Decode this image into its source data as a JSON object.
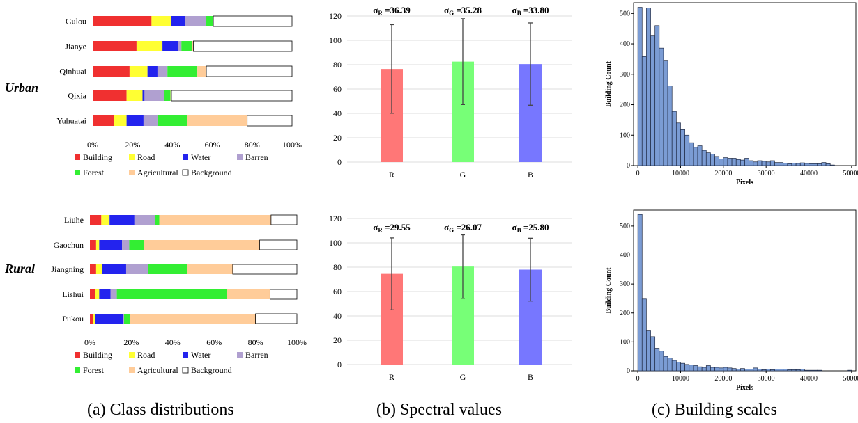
{
  "captions": {
    "a": "(a) Class distributions",
    "b": "(b) Spectral values",
    "c": "(c) Building scales"
  },
  "chart_data": [
    {
      "id": "urban-class-distribution",
      "type": "bar",
      "orientation": "horizontal",
      "stacked": true,
      "group_label": "Urban",
      "categories": [
        "Gulou",
        "Jianye",
        "Qinhuai",
        "Qixia",
        "Yuhuatai"
      ],
      "xlim": [
        0,
        100
      ],
      "x_ticks": [
        "0%",
        "20%",
        "40%",
        "60%",
        "80%",
        "100%"
      ],
      "series": [
        {
          "name": "Building",
          "color": "#f03030",
          "values": [
            29.5,
            22,
            18.5,
            17,
            10.5
          ]
        },
        {
          "name": "Road",
          "color": "#ffff33",
          "values": [
            10,
            13,
            9,
            8,
            6.5
          ]
        },
        {
          "name": "Water",
          "color": "#2323ee",
          "values": [
            7,
            8,
            5,
            1,
            8.5
          ]
        },
        {
          "name": "Barren",
          "color": "#b0a0d0",
          "values": [
            10.5,
            1.5,
            5,
            10,
            7
          ]
        },
        {
          "name": "Forest",
          "color": "#33ee33",
          "values": [
            3.5,
            5.5,
            15,
            3,
            15
          ]
        },
        {
          "name": "Agricultural",
          "color": "#ffcc99",
          "values": [
            0,
            0.5,
            4.5,
            0.5,
            30
          ]
        },
        {
          "name": "Background",
          "color": "#ffffff",
          "values": [
            39.5,
            49.5,
            43,
            60.5,
            22.5
          ]
        }
      ],
      "legend": "bottom"
    },
    {
      "id": "rural-class-distribution",
      "type": "bar",
      "orientation": "horizontal",
      "stacked": true,
      "group_label": "Rural",
      "categories": [
        "Liuhe",
        "Gaochun",
        "Jiangning",
        "Lishui",
        "Pukou"
      ],
      "xlim": [
        0,
        100
      ],
      "x_ticks": [
        "0%",
        "20%",
        "40%",
        "60%",
        "80%",
        "100%"
      ],
      "series": [
        {
          "name": "Building",
          "color": "#f03030",
          "values": [
            5.5,
            3,
            3,
            2.5,
            1.5
          ]
        },
        {
          "name": "Road",
          "color": "#ffff33",
          "values": [
            4,
            1.5,
            3,
            2,
            1
          ]
        },
        {
          "name": "Water",
          "color": "#2323ee",
          "values": [
            12,
            11,
            11.5,
            5.5,
            13.5
          ]
        },
        {
          "name": "Barren",
          "color": "#b0a0d0",
          "values": [
            10,
            3.5,
            10.5,
            3,
            0.5
          ]
        },
        {
          "name": "Forest",
          "color": "#33ee33",
          "values": [
            2,
            7,
            19,
            53,
            3
          ]
        },
        {
          "name": "Agricultural",
          "color": "#ffcc99",
          "values": [
            54,
            56,
            22,
            21,
            60.5
          ]
        },
        {
          "name": "Background",
          "color": "#ffffff",
          "values": [
            12.5,
            18,
            31,
            13,
            20
          ]
        }
      ],
      "legend": "bottom"
    },
    {
      "id": "urban-spectral-values",
      "type": "bar",
      "categories": [
        "R",
        "G",
        "B"
      ],
      "values": [
        76.5,
        82.5,
        80.5
      ],
      "errors": [
        36.39,
        35.28,
        33.8
      ],
      "colors": [
        "#ff7777",
        "#77ff77",
        "#7777ff"
      ],
      "annotations": [
        {
          "sym": "σ",
          "sub": "R",
          "text": " =36.39"
        },
        {
          "sym": "σ",
          "sub": "G",
          "text": " =35.28"
        },
        {
          "sym": "σ",
          "sub": "B",
          "text": " =33.80"
        }
      ],
      "ylim": [
        0,
        120
      ],
      "y_ticks": [
        0,
        20,
        40,
        60,
        80,
        100,
        120
      ],
      "grid": true
    },
    {
      "id": "rural-spectral-values",
      "type": "bar",
      "categories": [
        "R",
        "G",
        "B"
      ],
      "values": [
        74.5,
        80.5,
        78
      ],
      "errors": [
        29.55,
        26.07,
        25.8
      ],
      "colors": [
        "#ff7777",
        "#77ff77",
        "#7777ff"
      ],
      "annotations": [
        {
          "sym": "σ",
          "sub": "R",
          "text": " =29.55"
        },
        {
          "sym": "σ",
          "sub": "G",
          "text": " =26.07"
        },
        {
          "sym": "σ",
          "sub": "B",
          "text": " =25.80"
        }
      ],
      "ylim": [
        0,
        120
      ],
      "y_ticks": [
        0,
        20,
        40,
        60,
        80,
        100,
        120
      ],
      "grid": true
    },
    {
      "id": "urban-building-scales",
      "type": "bar",
      "histogram": true,
      "bin_width": 1000,
      "x_start": 0,
      "xlabel": "Pixels",
      "ylabel": "Building Count",
      "xlim": [
        -1000,
        51000
      ],
      "ylim": [
        0,
        535
      ],
      "x_ticks": [
        0,
        10000,
        20000,
        30000,
        40000,
        50000
      ],
      "y_ticks": [
        0,
        100,
        200,
        300,
        400,
        500
      ],
      "color": "#7b9cd4",
      "values": [
        520,
        358,
        518,
        426,
        460,
        386,
        346,
        262,
        178,
        140,
        118,
        100,
        75,
        60,
        65,
        50,
        42,
        38,
        30,
        22,
        26,
        24,
        24,
        20,
        18,
        24,
        16,
        12,
        16,
        14,
        12,
        16,
        10,
        10,
        8,
        6,
        8,
        7,
        9,
        7,
        6,
        6,
        6,
        10,
        6,
        2,
        0,
        0,
        0,
        0
      ]
    },
    {
      "id": "rural-building-scales",
      "type": "bar",
      "histogram": true,
      "bin_width": 1000,
      "x_start": 0,
      "xlabel": "Pixels",
      "ylabel": "Building Count",
      "xlim": [
        -1000,
        51000
      ],
      "ylim": [
        0,
        555
      ],
      "x_ticks": [
        0,
        10000,
        20000,
        30000,
        40000,
        50000
      ],
      "y_ticks": [
        0,
        100,
        200,
        300,
        400,
        500
      ],
      "color": "#7b9cd4",
      "values": [
        540,
        248,
        138,
        118,
        78,
        68,
        50,
        44,
        36,
        30,
        26,
        22,
        20,
        18,
        14,
        12,
        18,
        12,
        12,
        10,
        12,
        10,
        8,
        6,
        8,
        6,
        6,
        10,
        6,
        4,
        6,
        4,
        6,
        6,
        6,
        4,
        4,
        4,
        6,
        2,
        2,
        2,
        2,
        0,
        0,
        0,
        0,
        0,
        0,
        2
      ]
    }
  ]
}
